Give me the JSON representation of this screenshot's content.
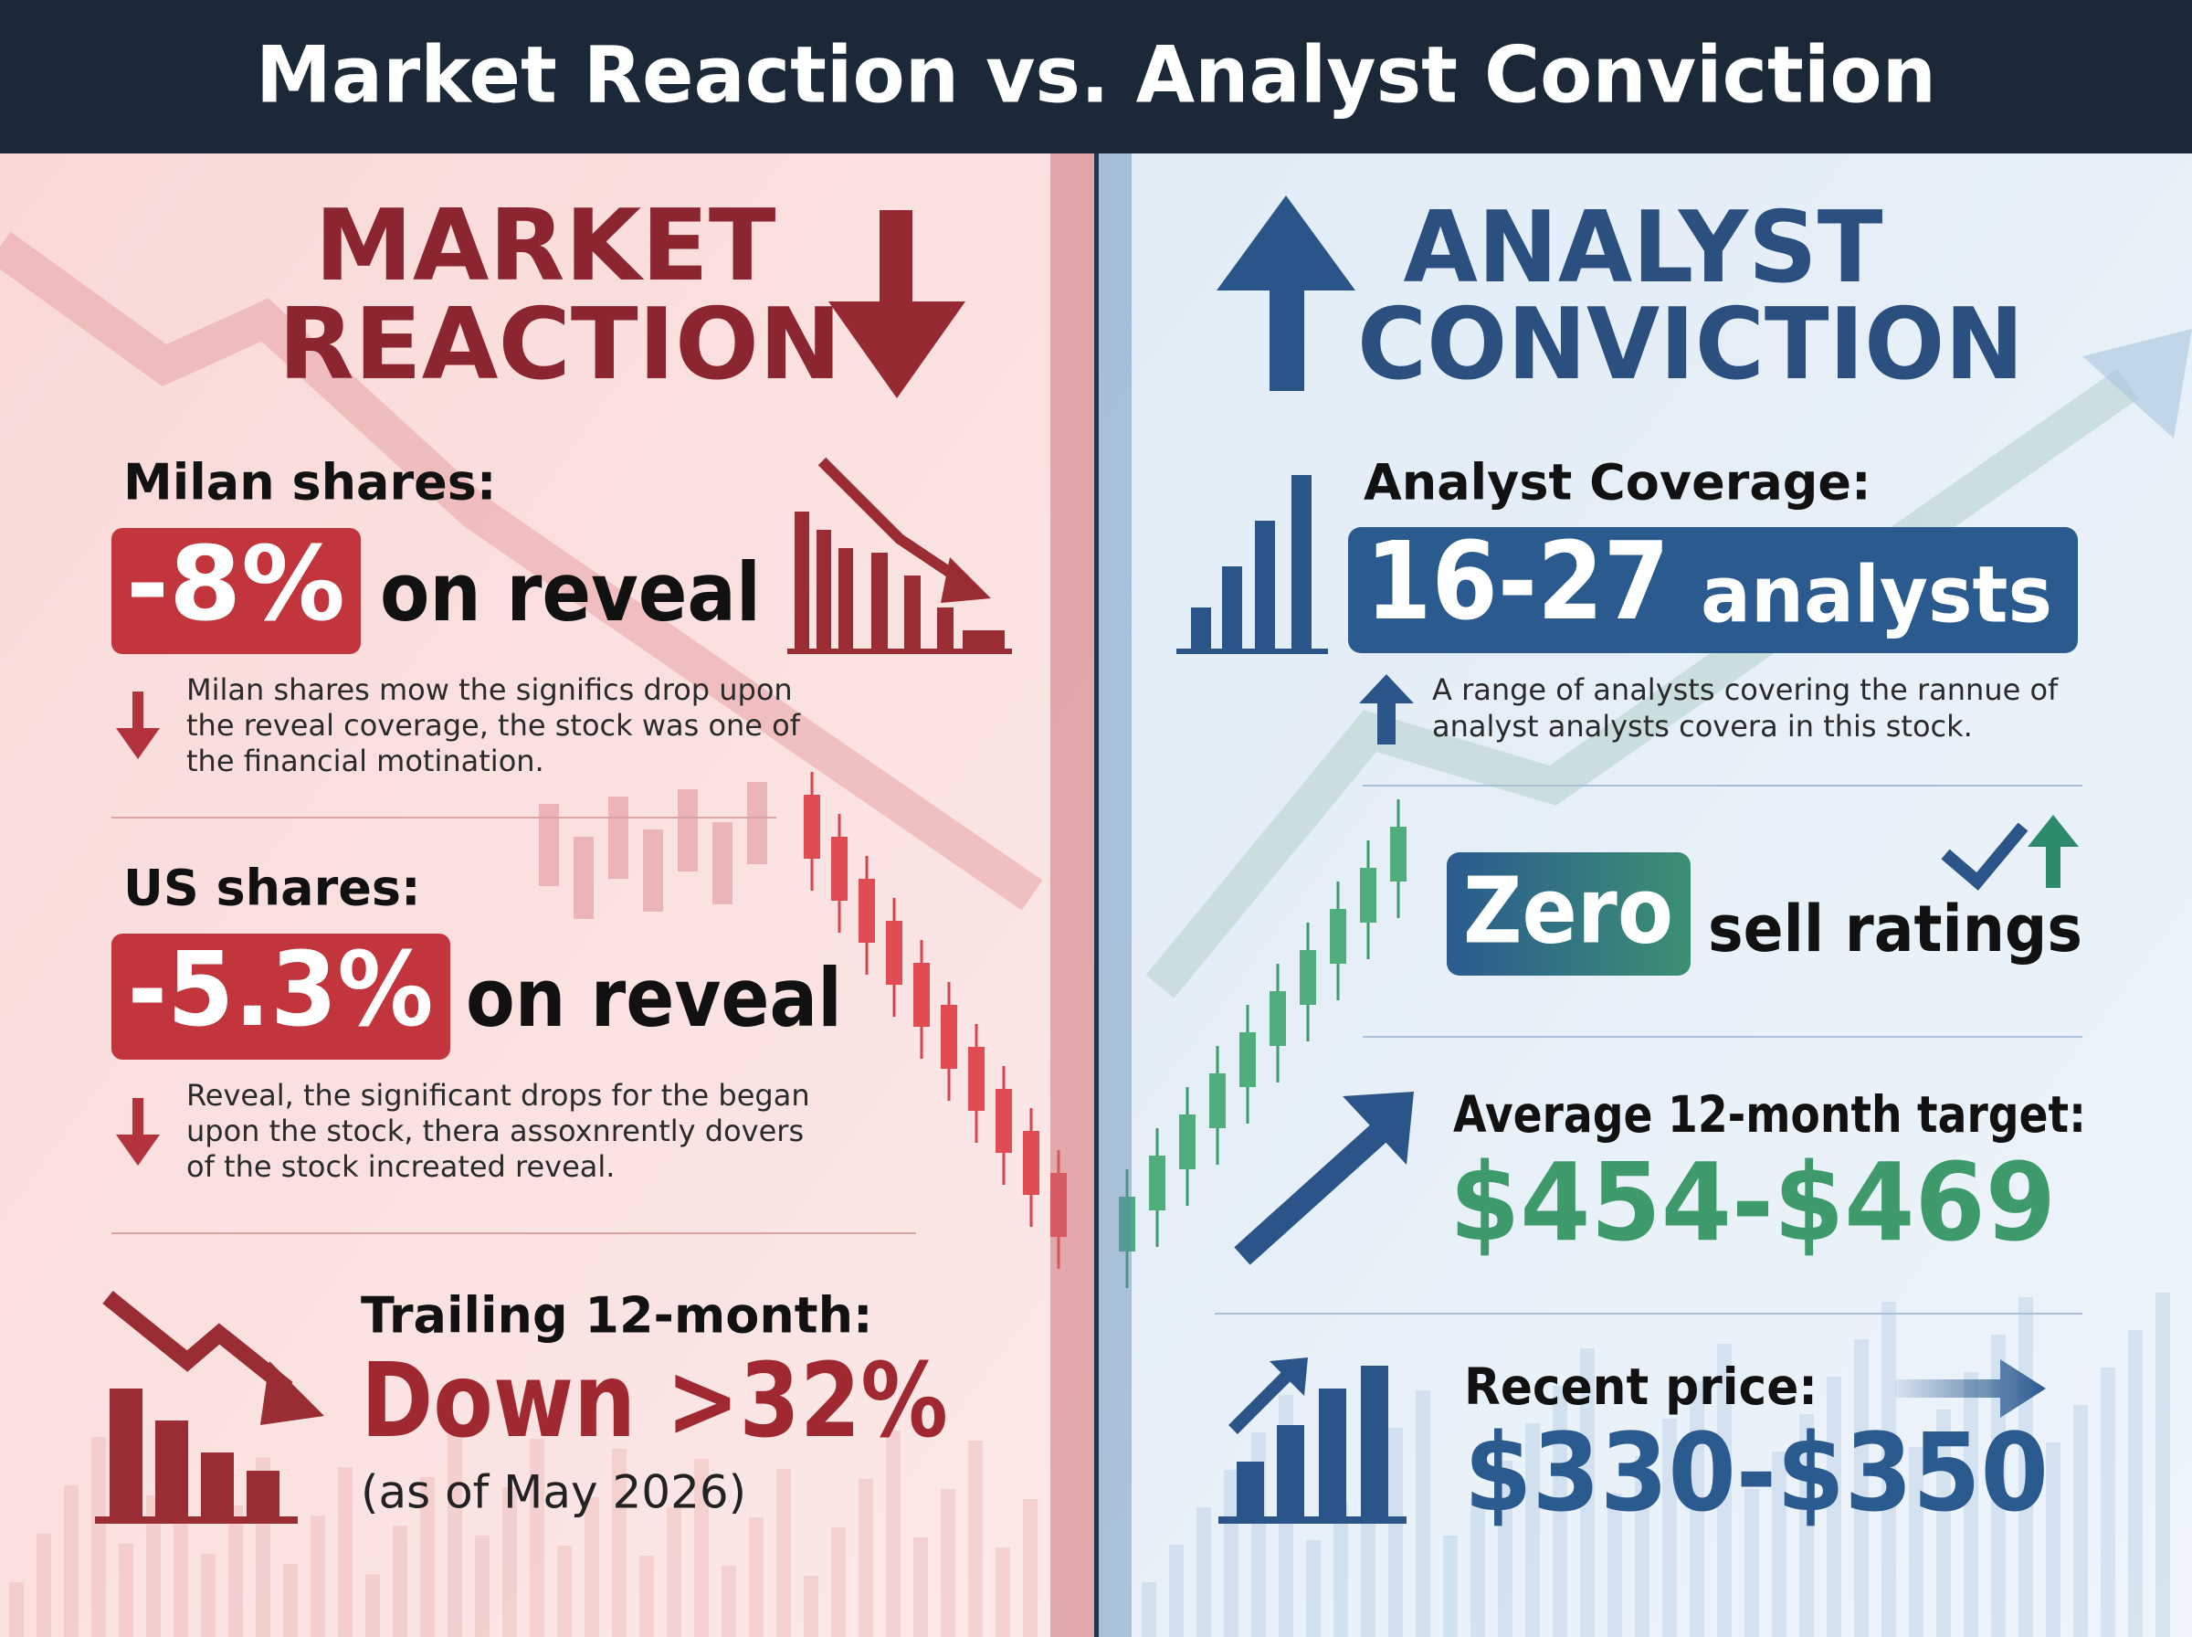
{
  "header": {
    "title": "Market Reaction vs. Analyst Conviction"
  },
  "left": {
    "heading": [
      "MARKET",
      "REACTION"
    ],
    "items": [
      {
        "label": "Milan shares:",
        "value": "-8%",
        "suffix": "on reveal",
        "note": [
          "Milan shares mow the significs drop upon",
          "the reveal coverage, the stock was one of",
          "the financial motination."
        ]
      },
      {
        "label": "US shares:",
        "value": "-5.3%",
        "suffix": "on reveal",
        "note": [
          "Reveal, the significant drops for the began",
          "upon the stock, thera assoxnrently dovers",
          "of the stock increated reveal."
        ]
      }
    ],
    "trailing": {
      "label": "Trailing 12-month:",
      "value": "Down >32%",
      "note": "(as of May 2026)"
    }
  },
  "right": {
    "heading": [
      "ANALYST",
      "CONVICTION"
    ],
    "coverage": {
      "label": "Analyst Coverage:",
      "value": "16-27",
      "suffix": "analysts",
      "note": [
        "A range of analysts covering the rannue of",
        "analyst analysts covera in this stock."
      ]
    },
    "sell": {
      "value": "Zero",
      "suffix": "sell ratings"
    },
    "target": {
      "label": "Average 12-month target:",
      "value": "$454-$469"
    },
    "price": {
      "label": "Recent price:",
      "value": "$330-$350"
    }
  }
}
